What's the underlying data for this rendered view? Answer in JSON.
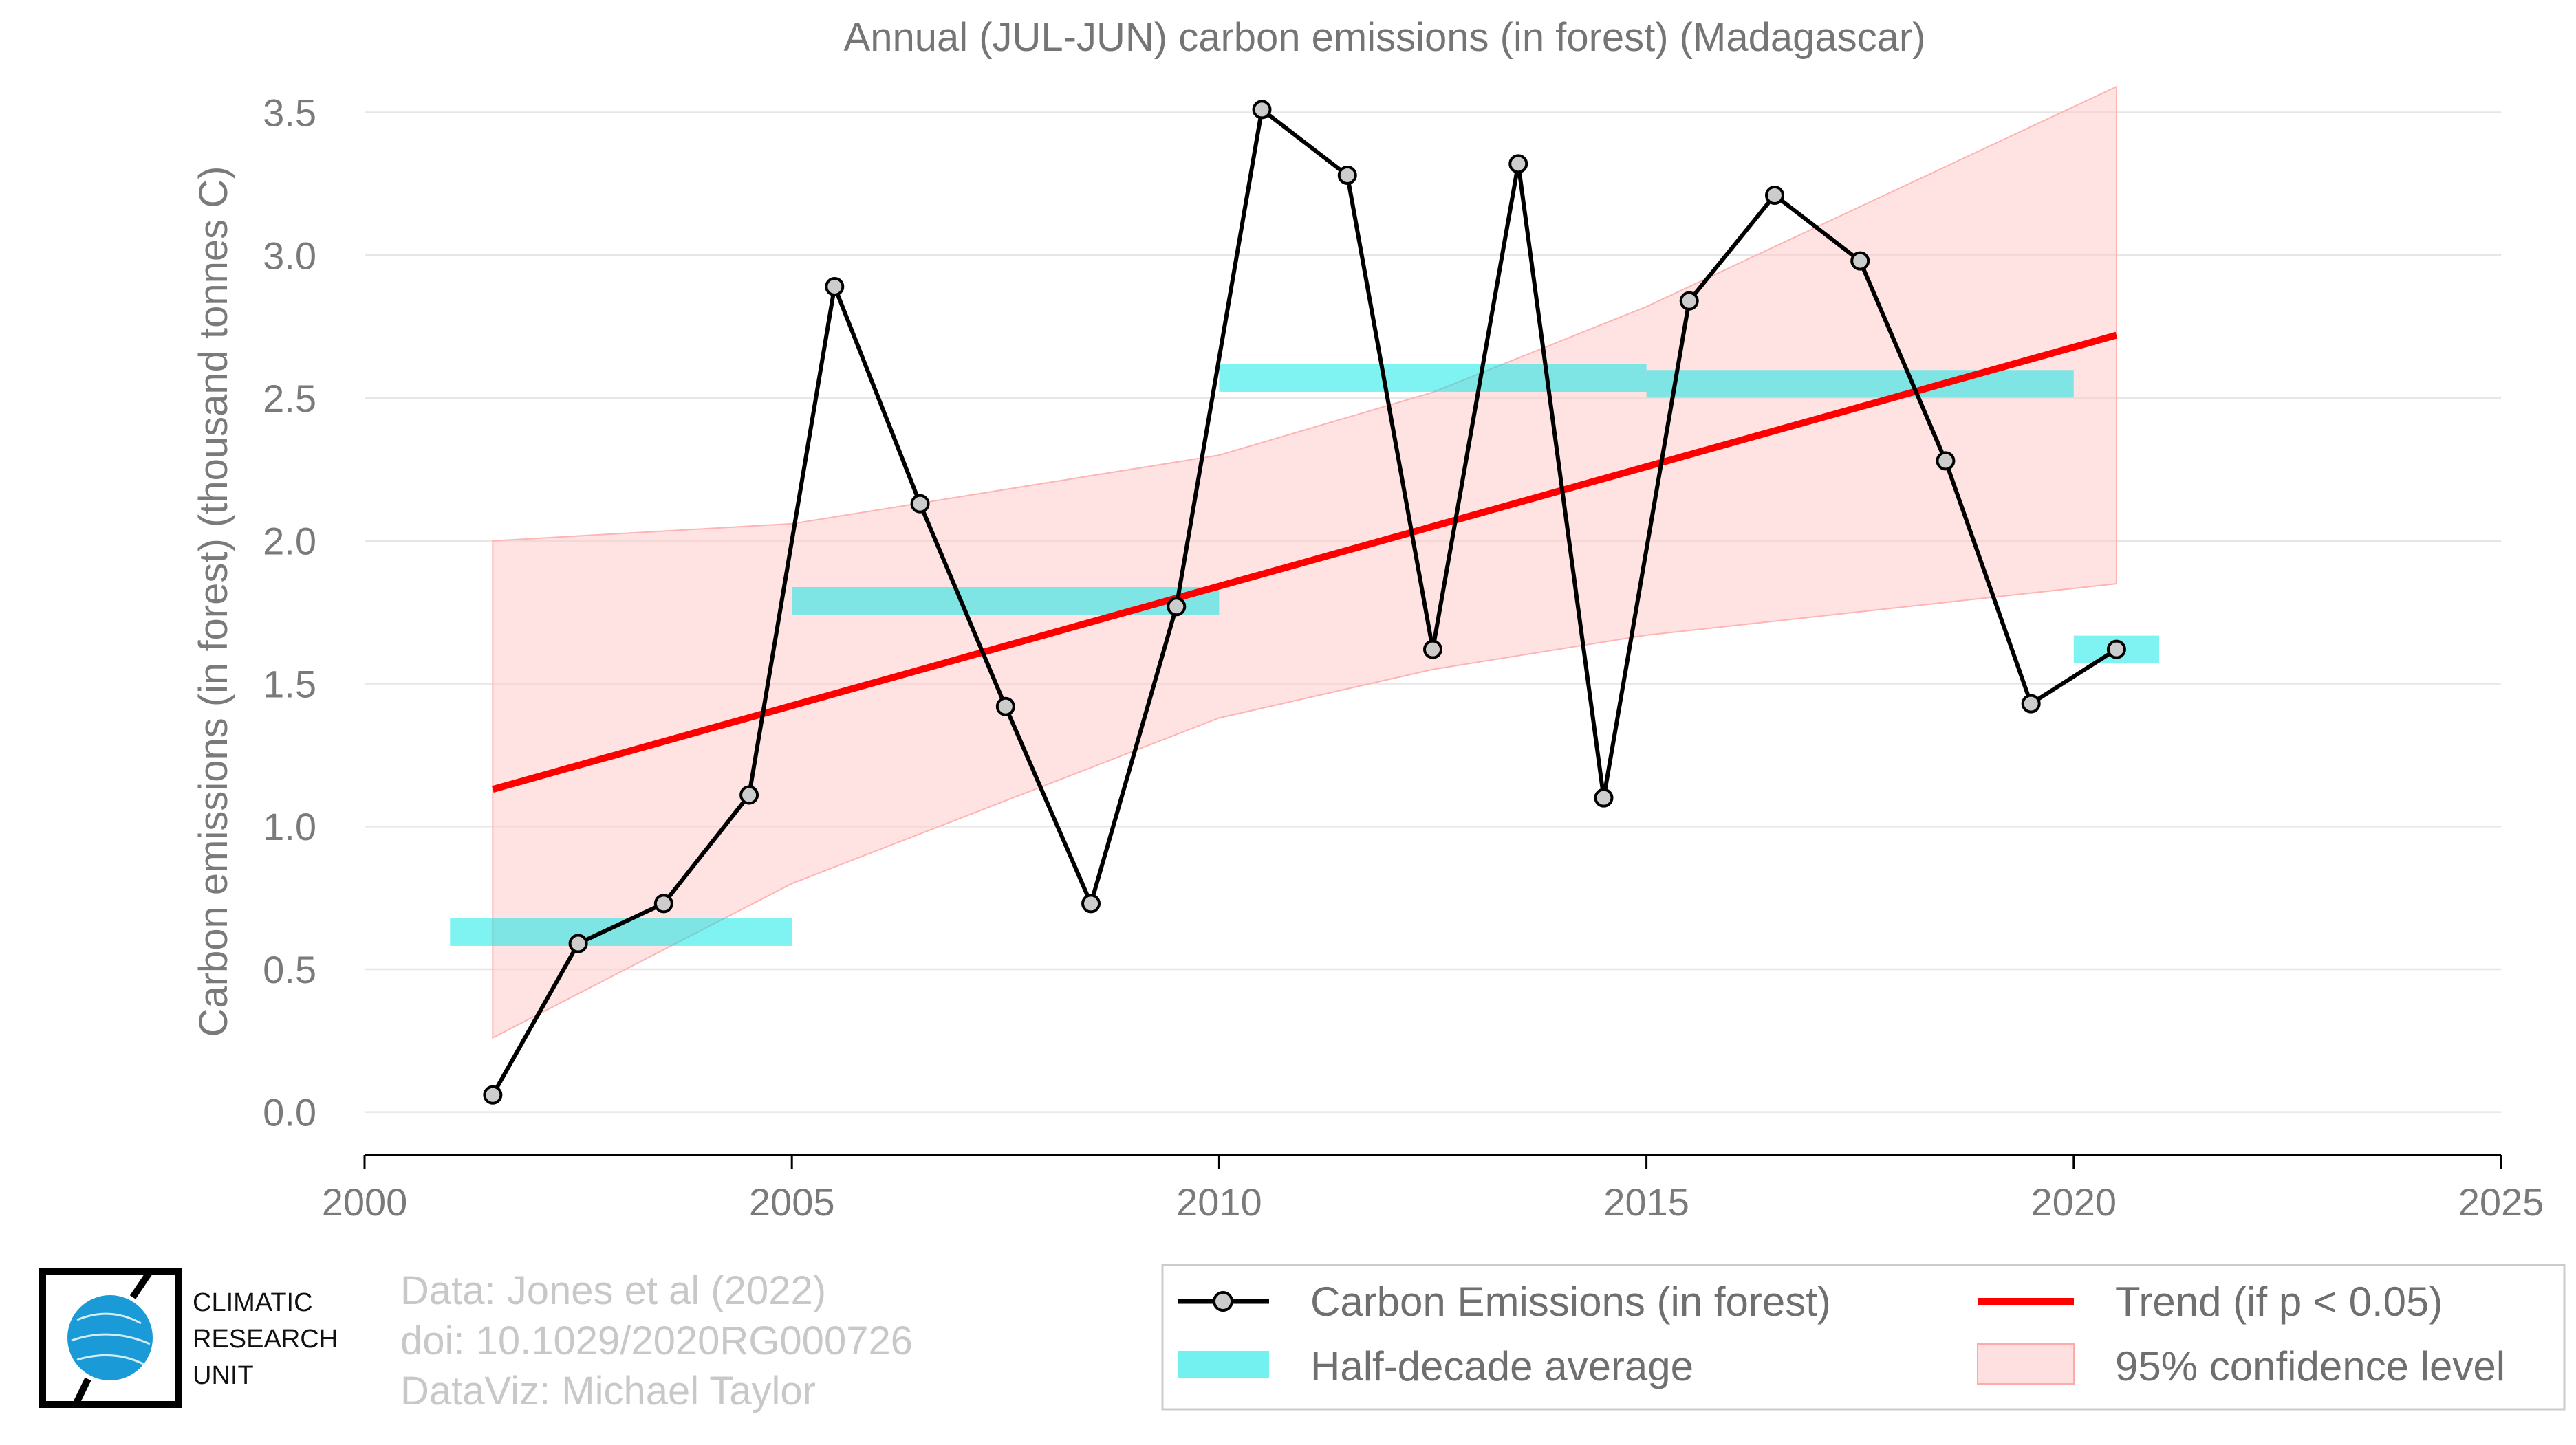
{
  "chart_data": {
    "type": "line",
    "title": "Annual (JUL-JUN) carbon emissions (in forest) (Madagascar)",
    "ylabel": "Carbon emissions (in forest) (thousand tonnes C)",
    "xlabel": "",
    "xlim": [
      2000,
      2025
    ],
    "ylim": [
      -0.15,
      3.6
    ],
    "x_ticks": [
      2000,
      2005,
      2010,
      2015,
      2020,
      2025
    ],
    "x_tick_labels": [
      "2000",
      "2005",
      "2010",
      "2015",
      "2020",
      "2025"
    ],
    "y_ticks": [
      0.0,
      0.5,
      1.0,
      1.5,
      2.0,
      2.5,
      3.0,
      3.5
    ],
    "y_tick_labels": [
      "0.0",
      "0.5",
      "1.0",
      "1.5",
      "2.0",
      "2.5",
      "3.0",
      "3.5"
    ],
    "grid": "horizontal",
    "legend_position": "bottom-right",
    "series": [
      {
        "name": "Carbon Emissions (in forest)",
        "type": "line-markers",
        "color": "#000000",
        "marker_fill": "#cccccc",
        "x": [
          2001.5,
          2002.5,
          2003.5,
          2004.5,
          2005.5,
          2006.5,
          2007.5,
          2008.5,
          2009.5,
          2010.5,
          2011.5,
          2012.5,
          2013.5,
          2014.5,
          2015.5,
          2016.5,
          2017.5,
          2018.5,
          2019.5,
          2020.5
        ],
        "values": [
          0.06,
          0.59,
          0.73,
          1.11,
          2.89,
          2.13,
          1.42,
          0.73,
          1.77,
          3.51,
          3.28,
          1.62,
          3.32,
          1.1,
          2.84,
          3.21,
          2.98,
          2.28,
          1.43,
          1.62
        ]
      },
      {
        "name": "Half-decade average",
        "type": "step-bars",
        "color": "#00e5e5",
        "segments": [
          {
            "x0": 2001,
            "x1": 2005,
            "value": 0.63
          },
          {
            "x0": 2005,
            "x1": 2010,
            "value": 1.79
          },
          {
            "x0": 2010,
            "x1": 2015,
            "value": 2.57
          },
          {
            "x0": 2015,
            "x1": 2020,
            "value": 2.55
          },
          {
            "x0": 2020,
            "x1": 2021,
            "value": 1.62
          }
        ]
      },
      {
        "name": "Trend (if p < 0.05)",
        "type": "line",
        "color": "#ff0000",
        "x": [
          2001.5,
          2020.5
        ],
        "values": [
          1.13,
          2.72
        ]
      },
      {
        "name": "95% confidence level",
        "type": "band",
        "color": "#ffcccc",
        "x": [
          2001.5,
          2005,
          2010,
          2012.5,
          2015,
          2020.5
        ],
        "lower": [
          0.26,
          0.8,
          1.38,
          1.55,
          1.67,
          1.85
        ],
        "upper": [
          2.0,
          2.06,
          2.3,
          2.52,
          2.82,
          3.59
        ]
      }
    ]
  },
  "legend": {
    "items": [
      {
        "label": "Carbon Emissions (in forest)"
      },
      {
        "label": "Trend (if p < 0.05)"
      },
      {
        "label": "Half-decade average"
      },
      {
        "label": "95% confidence level"
      }
    ]
  },
  "credits": {
    "line1": "Data: Jones et al (2022)",
    "line2": "doi: 10.1029/2020RG000726",
    "line3": "DataViz: Michael Taylor"
  },
  "logo": {
    "line1": "CLIMATIC",
    "line2": "RESEARCH",
    "line3": "UNIT",
    "color": "#1a9ad6"
  }
}
